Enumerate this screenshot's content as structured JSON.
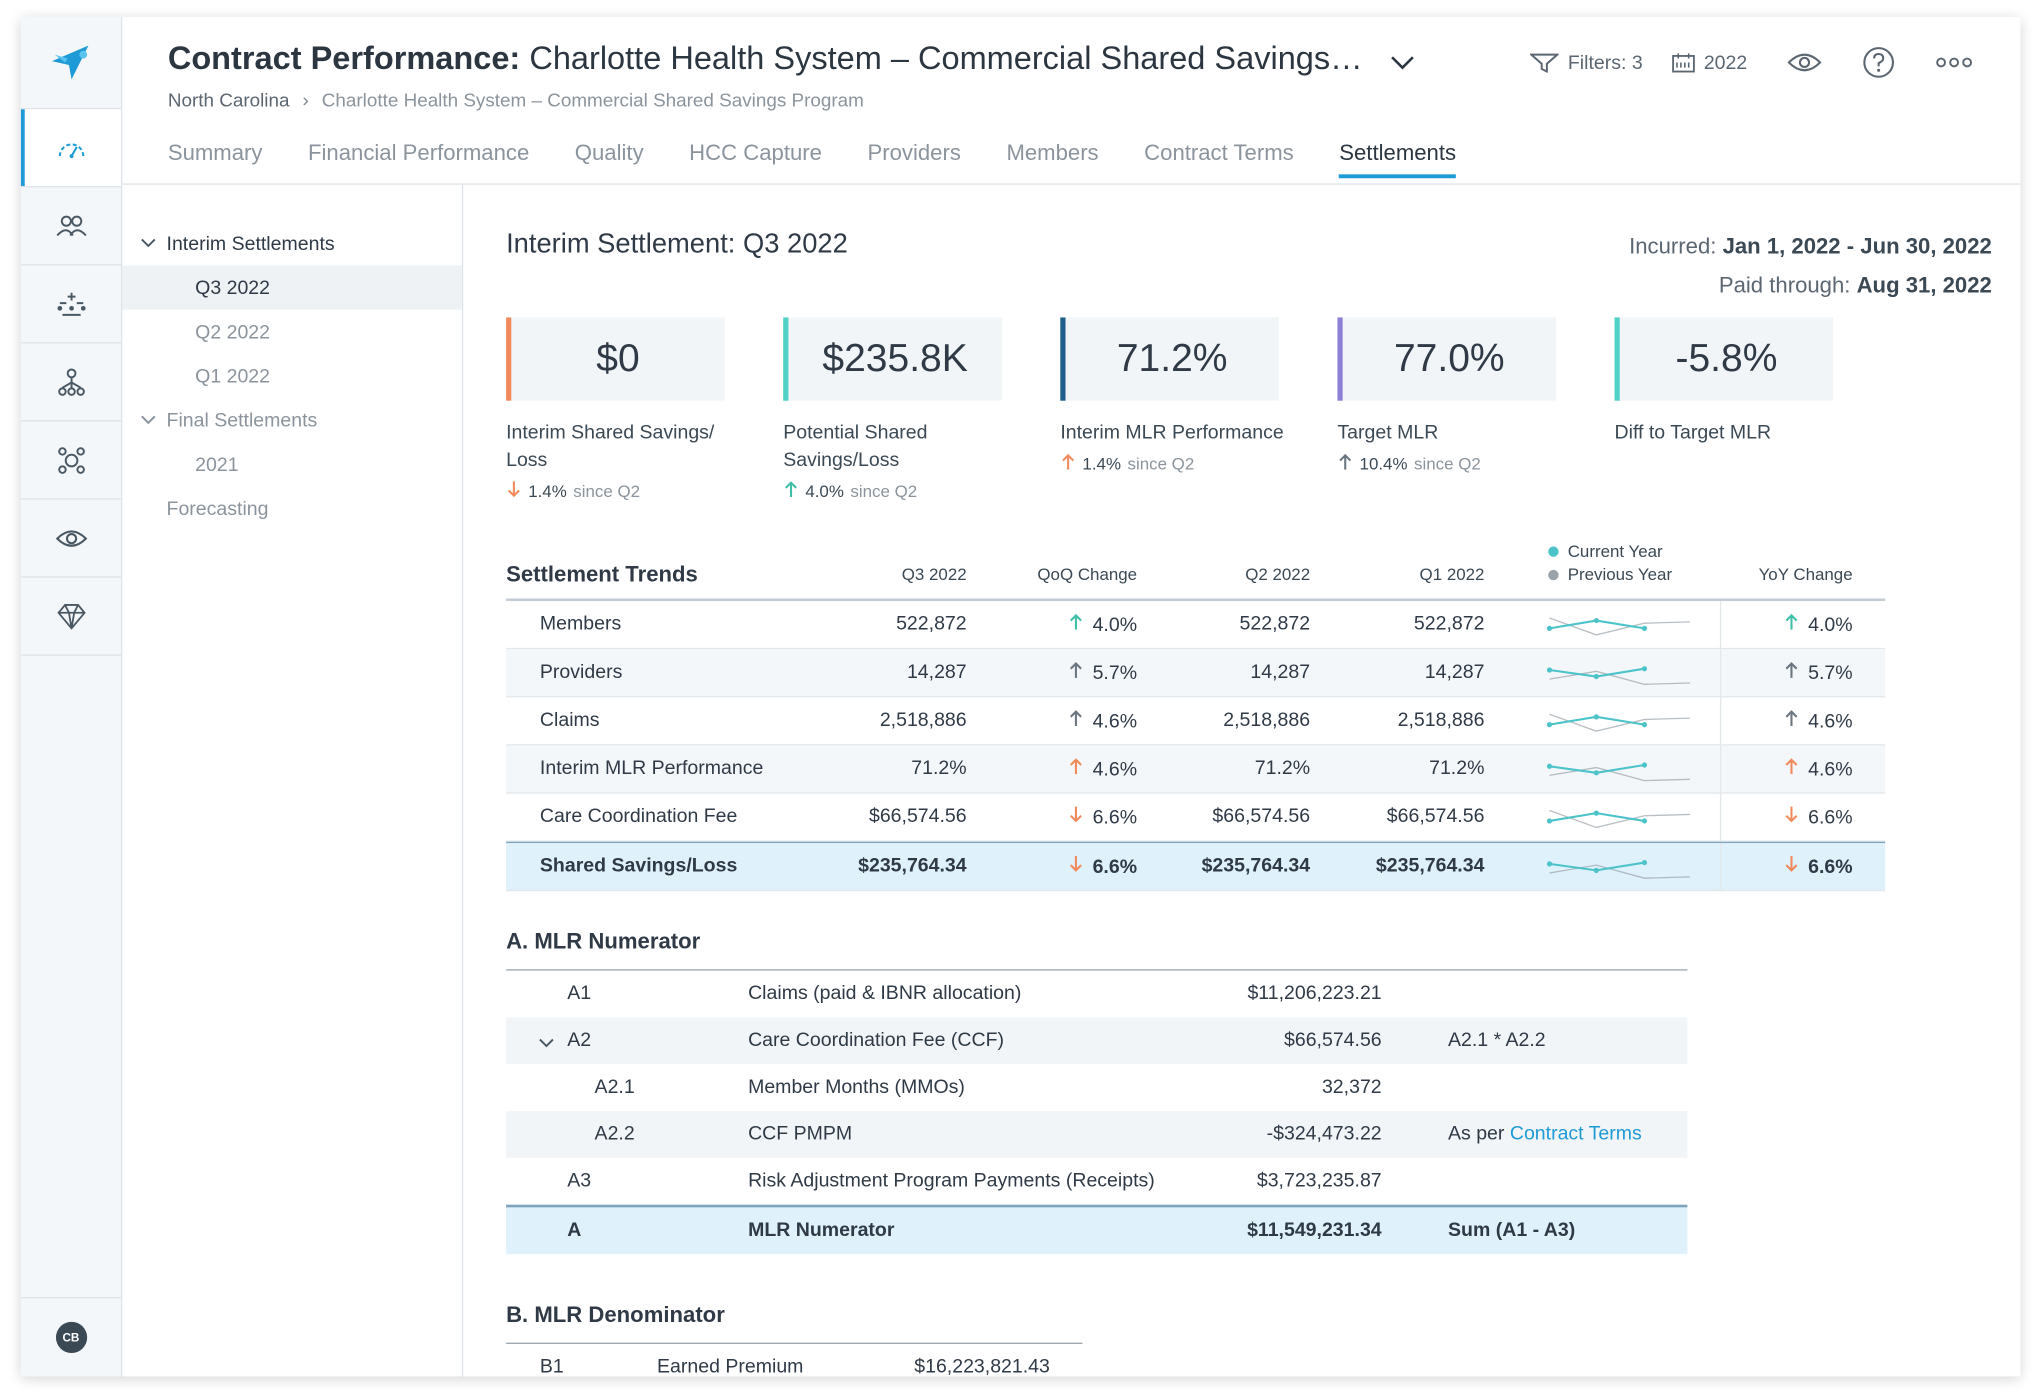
{
  "header": {
    "title_bold": "Contract Performance:",
    "title_rest": "Charlotte Health System – Commercial Shared Savings…",
    "breadcrumb": [
      "North Carolina",
      "Charlotte Health System – Commercial Shared Savings Program"
    ],
    "filters_label": "Filters: 3",
    "year_label": "2022"
  },
  "tabs": [
    "Summary",
    "Financial Performance",
    "Quality",
    "HCC Capture",
    "Providers",
    "Members",
    "Contract Terms",
    "Settlements"
  ],
  "active_tab": "Settlements",
  "rail": {
    "icons": [
      "gauge-icon",
      "members-icon",
      "hcc-icon",
      "network-icon",
      "quality-icon",
      "view-icon",
      "gem-icon"
    ],
    "avatar": "CB"
  },
  "tree": {
    "interim_label": "Interim Settlements",
    "interim_items": [
      "Q3 2022",
      "Q2 2022",
      "Q1 2022"
    ],
    "final_label": "Final Settlements",
    "final_items": [
      "2021"
    ],
    "forecasting": "Forecasting"
  },
  "pane": {
    "title": "Interim Settlement: Q3 2022",
    "incurred_label": "Incurred:",
    "incurred_value": "Jan 1, 2022 - Jun 30, 2022",
    "paid_label": "Paid through:",
    "paid_value": "Aug 31, 2022"
  },
  "kpis": [
    {
      "value": "$0",
      "label": "Interim Shared Savings/ Loss",
      "change": "1.4%",
      "dir": "down",
      "since": "since Q2",
      "color": "#f08a5d"
    },
    {
      "value": "$235.8K",
      "label": "Potential Shared Savings/Loss",
      "change": "4.0%",
      "dir": "up",
      "since": "since Q2",
      "color": "#4fd1c5"
    },
    {
      "value": "71.2%",
      "label": "Interim MLR Performance",
      "change": "1.4%",
      "dir": "up",
      "since": "since Q2",
      "color": "#1f5f8b"
    },
    {
      "value": "77.0%",
      "label": "Target MLR",
      "change": "10.4%",
      "dir": "up",
      "since": "since Q2",
      "color": "#8b7fd6"
    },
    {
      "value": "-5.8%",
      "label": "Diff to Target MLR",
      "change": "",
      "dir": "",
      "since": "",
      "color": "#4fd1c5"
    }
  ],
  "trends": {
    "title": "Settlement Trends",
    "columns": [
      "Q3 2022",
      "QoQ Change",
      "Q2 2022",
      "Q1 2022",
      "YoY Change"
    ],
    "legend": [
      "Current Year",
      "Previous Year"
    ],
    "legend_colors": [
      "#4cc3c9",
      "#9aa3aa"
    ],
    "rows": [
      {
        "name": "Members",
        "q3": "522,872",
        "qoq": "4.0%",
        "qoq_dir": "up",
        "qoq_color": "#3fbfa8",
        "q2": "522,872",
        "q1": "522,872",
        "yoy": "4.0%",
        "yoy_dir": "up",
        "yoy_color": "#3fbfa8"
      },
      {
        "name": "Providers",
        "q3": "14,287",
        "qoq": "5.7%",
        "qoq_dir": "up",
        "qoq_color": "#6b7680",
        "q2": "14,287",
        "q1": "14,287",
        "yoy": "5.7%",
        "yoy_dir": "up",
        "yoy_color": "#6b7680"
      },
      {
        "name": "Claims",
        "q3": "2,518,886",
        "qoq": "4.6%",
        "qoq_dir": "up",
        "qoq_color": "#6b7680",
        "q2": "2,518,886",
        "q1": "2,518,886",
        "yoy": "4.6%",
        "yoy_dir": "up",
        "yoy_color": "#6b7680"
      },
      {
        "name": "Interim MLR Performance",
        "q3": "71.2%",
        "qoq": "4.6%",
        "qoq_dir": "up",
        "qoq_color": "#f08a5d",
        "q2": "71.2%",
        "q1": "71.2%",
        "yoy": "4.6%",
        "yoy_dir": "up",
        "yoy_color": "#f08a5d"
      },
      {
        "name": "Care Coordination Fee",
        "q3": "$66,574.56",
        "qoq": "6.6%",
        "qoq_dir": "down",
        "qoq_color": "#f08a5d",
        "q2": "$66,574.56",
        "q1": "$66,574.56",
        "yoy": "6.6%",
        "yoy_dir": "down",
        "yoy_color": "#f08a5d"
      },
      {
        "name": "Shared Savings/Loss",
        "q3": "$235,764.34",
        "qoq": "6.6%",
        "qoq_dir": "down",
        "qoq_color": "#f08a5d",
        "q2": "$235,764.34",
        "q1": "$235,764.34",
        "yoy": "6.6%",
        "yoy_dir": "down",
        "yoy_color": "#f08a5d"
      }
    ]
  },
  "mlr_numerator": {
    "title": "A. MLR Numerator",
    "rows": [
      {
        "id": "A1",
        "desc": "Claims (paid & IBNR allocation)",
        "value": "$11,206,223.21",
        "note": ""
      },
      {
        "id": "A2",
        "desc": "Care Coordination Fee (CCF)",
        "value": "$66,574.56",
        "note": "A2.1 * A2.2"
      },
      {
        "id": "A2.1",
        "desc": "Member Months (MMOs)",
        "value": "32,372",
        "note": ""
      },
      {
        "id": "A2.2",
        "desc": "CCF PMPM",
        "value": "-$324,473.22",
        "note_prefix": "As per ",
        "note_link": "Contract Terms"
      },
      {
        "id": "A3",
        "desc": "Risk Adjustment Program Payments (Receipts)",
        "value": "$3,723,235.87",
        "note": ""
      },
      {
        "id": "A",
        "desc": "MLR Numerator",
        "value": "$11,549,231.34",
        "note": "Sum (A1 - A3)"
      }
    ]
  },
  "mlr_denominator": {
    "title": "B. MLR Denominator",
    "rows": [
      {
        "id": "B1",
        "desc": "Earned Premium",
        "value": "$16,223,821.43"
      }
    ]
  }
}
